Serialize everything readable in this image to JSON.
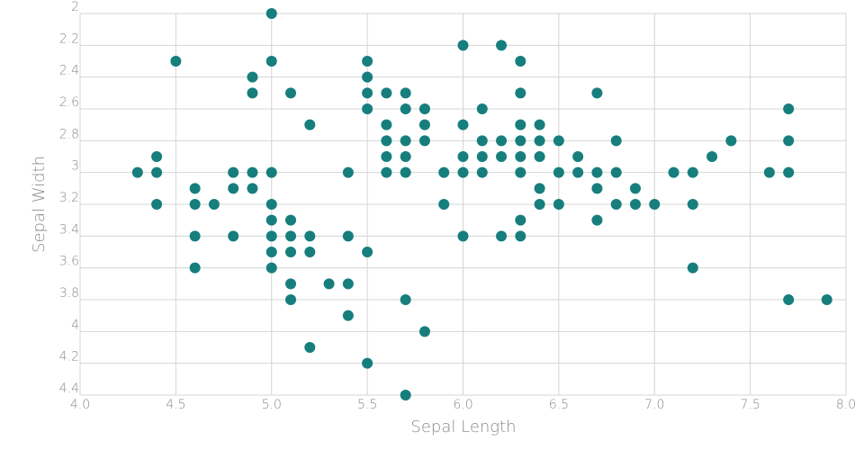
{
  "chart_data": {
    "type": "scatter",
    "xlabel": "Sepal Length",
    "ylabel": "Sepal Width",
    "xlim": [
      4.0,
      8.0
    ],
    "ylim": [
      2.0,
      4.4
    ],
    "y_inverted": true,
    "grid": true,
    "point_color": "#177e7e",
    "x_ticks": [
      "4.0",
      "4.5",
      "5.0",
      "5.5",
      "6.0",
      "6.5",
      "7.0",
      "7.5",
      "8.0"
    ],
    "y_ticks": [
      "2",
      "2.2",
      "2.4",
      "2.6",
      "2.8",
      "3",
      "3.2",
      "3.4",
      "3.6",
      "3.8",
      "4",
      "4.2",
      "4.4"
    ],
    "points": [
      [
        5.0,
        2.0
      ],
      [
        6.0,
        2.2
      ],
      [
        6.2,
        2.2
      ],
      [
        4.5,
        2.3
      ],
      [
        5.0,
        2.3
      ],
      [
        5.5,
        2.3
      ],
      [
        6.3,
        2.3
      ],
      [
        4.9,
        2.4
      ],
      [
        5.5,
        2.4
      ],
      [
        4.9,
        2.5
      ],
      [
        5.1,
        2.5
      ],
      [
        5.5,
        2.5
      ],
      [
        5.6,
        2.5
      ],
      [
        5.7,
        2.5
      ],
      [
        6.3,
        2.5
      ],
      [
        6.7,
        2.5
      ],
      [
        5.5,
        2.6
      ],
      [
        5.7,
        2.6
      ],
      [
        5.8,
        2.6
      ],
      [
        6.1,
        2.6
      ],
      [
        7.7,
        2.6
      ],
      [
        5.2,
        2.7
      ],
      [
        5.6,
        2.7
      ],
      [
        5.8,
        2.7
      ],
      [
        6.0,
        2.7
      ],
      [
        6.3,
        2.7
      ],
      [
        6.4,
        2.7
      ],
      [
        5.6,
        2.8
      ],
      [
        5.7,
        2.8
      ],
      [
        5.8,
        2.8
      ],
      [
        6.1,
        2.8
      ],
      [
        6.2,
        2.8
      ],
      [
        6.3,
        2.8
      ],
      [
        6.4,
        2.8
      ],
      [
        6.5,
        2.8
      ],
      [
        6.8,
        2.8
      ],
      [
        7.4,
        2.8
      ],
      [
        7.7,
        2.8
      ],
      [
        4.4,
        2.9
      ],
      [
        5.6,
        2.9
      ],
      [
        5.7,
        2.9
      ],
      [
        6.0,
        2.9
      ],
      [
        6.1,
        2.9
      ],
      [
        6.2,
        2.9
      ],
      [
        6.3,
        2.9
      ],
      [
        6.4,
        2.9
      ],
      [
        6.6,
        2.9
      ],
      [
        7.3,
        2.9
      ],
      [
        4.3,
        3.0
      ],
      [
        4.4,
        3.0
      ],
      [
        4.8,
        3.0
      ],
      [
        4.9,
        3.0
      ],
      [
        5.0,
        3.0
      ],
      [
        5.4,
        3.0
      ],
      [
        5.6,
        3.0
      ],
      [
        5.7,
        3.0
      ],
      [
        5.9,
        3.0
      ],
      [
        6.0,
        3.0
      ],
      [
        6.1,
        3.0
      ],
      [
        6.3,
        3.0
      ],
      [
        6.5,
        3.0
      ],
      [
        6.6,
        3.0
      ],
      [
        6.7,
        3.0
      ],
      [
        6.8,
        3.0
      ],
      [
        7.1,
        3.0
      ],
      [
        7.2,
        3.0
      ],
      [
        7.6,
        3.0
      ],
      [
        7.7,
        3.0
      ],
      [
        4.6,
        3.1
      ],
      [
        4.8,
        3.1
      ],
      [
        4.9,
        3.1
      ],
      [
        6.4,
        3.1
      ],
      [
        6.7,
        3.1
      ],
      [
        6.9,
        3.1
      ],
      [
        4.4,
        3.2
      ],
      [
        4.6,
        3.2
      ],
      [
        4.7,
        3.2
      ],
      [
        5.0,
        3.2
      ],
      [
        5.9,
        3.2
      ],
      [
        6.4,
        3.2
      ],
      [
        6.5,
        3.2
      ],
      [
        6.8,
        3.2
      ],
      [
        6.9,
        3.2
      ],
      [
        7.0,
        3.2
      ],
      [
        7.2,
        3.2
      ],
      [
        5.0,
        3.3
      ],
      [
        5.1,
        3.3
      ],
      [
        6.3,
        3.3
      ],
      [
        6.7,
        3.3
      ],
      [
        4.6,
        3.4
      ],
      [
        4.8,
        3.4
      ],
      [
        5.0,
        3.4
      ],
      [
        5.1,
        3.4
      ],
      [
        5.2,
        3.4
      ],
      [
        5.4,
        3.4
      ],
      [
        6.0,
        3.4
      ],
      [
        6.2,
        3.4
      ],
      [
        6.3,
        3.4
      ],
      [
        5.0,
        3.5
      ],
      [
        5.1,
        3.5
      ],
      [
        5.2,
        3.5
      ],
      [
        5.5,
        3.5
      ],
      [
        4.6,
        3.6
      ],
      [
        5.0,
        3.6
      ],
      [
        7.2,
        3.6
      ],
      [
        5.1,
        3.7
      ],
      [
        5.3,
        3.7
      ],
      [
        5.4,
        3.7
      ],
      [
        5.1,
        3.8
      ],
      [
        5.7,
        3.8
      ],
      [
        7.7,
        3.8
      ],
      [
        7.9,
        3.8
      ],
      [
        5.4,
        3.9
      ],
      [
        5.8,
        4.0
      ],
      [
        5.2,
        4.1
      ],
      [
        5.5,
        4.2
      ],
      [
        5.7,
        4.4
      ]
    ]
  }
}
